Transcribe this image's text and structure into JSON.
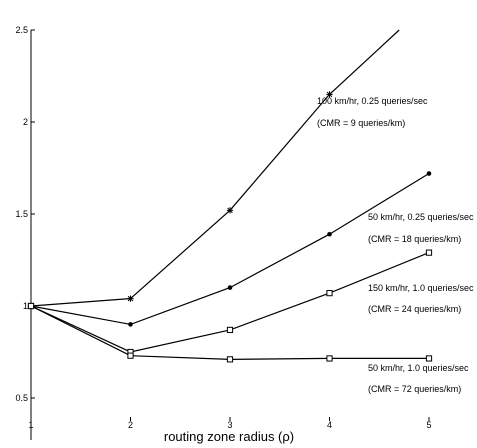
{
  "chart_data": {
    "type": "line",
    "title": "",
    "xlabel": "routing zone radius (ρ)",
    "ylabel": "",
    "xlim": [
      1,
      5
    ],
    "ylim": [
      0.4,
      2.5
    ],
    "grid": false,
    "x_ticks": [
      "1",
      "2",
      "3",
      "4",
      "5"
    ],
    "y_ticks": [
      "0.5",
      "1",
      "1.5",
      "2",
      "2.5"
    ],
    "x": [
      1,
      2,
      3,
      4,
      5
    ],
    "series": [
      {
        "name": "100 km/hr, 0.25 queries/sec",
        "note": "(CMR = 9 queries/km)",
        "marker": "star",
        "values": [
          1.0,
          1.04,
          1.52,
          2.15,
          2.65
        ]
      },
      {
        "name": "50 km/hr, 0.25 queries/sec",
        "note": "(CMR = 18 queries/km)",
        "marker": "dot",
        "values": [
          1.0,
          0.9,
          1.1,
          1.39,
          1.72
        ]
      },
      {
        "name": "150 km/hr, 1.0 queries/sec",
        "note": "(CMR = 24 queries/km)",
        "marker": "square",
        "values": [
          1.0,
          0.75,
          0.87,
          1.07,
          1.29
        ]
      },
      {
        "name": "50 km/hr, 1.0 queries/sec",
        "note": "(CMR = 72 queries/km)",
        "marker": "square",
        "values": [
          1.0,
          0.73,
          0.71,
          0.715,
          0.715
        ]
      }
    ]
  }
}
